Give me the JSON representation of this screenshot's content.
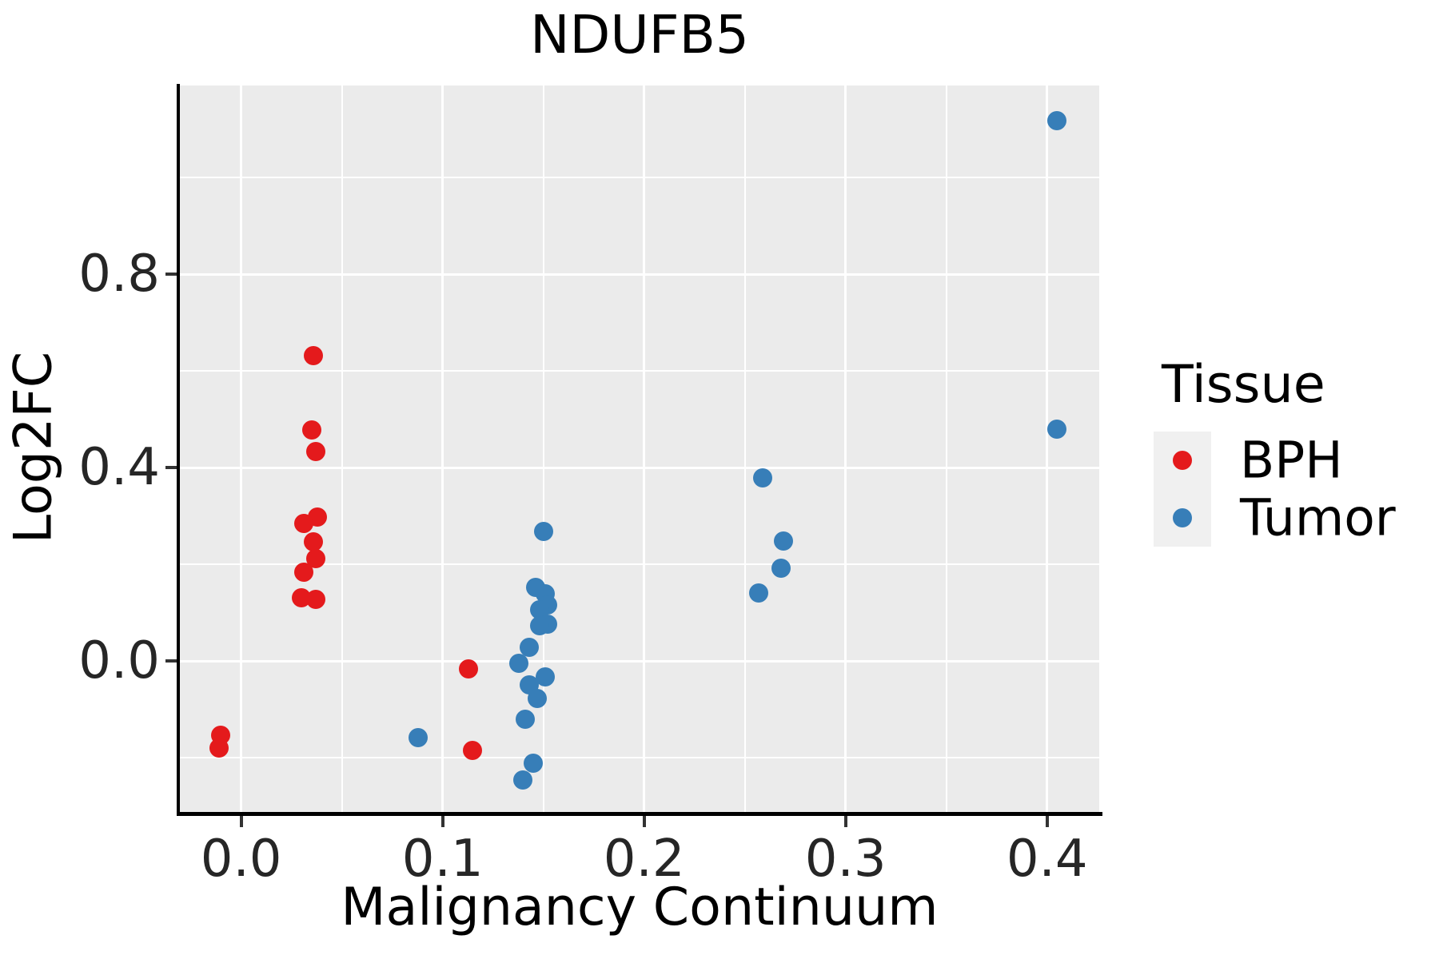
{
  "title": "NDUFB5",
  "axes": {
    "x": {
      "label": "Malignancy Continuum",
      "ticks": [
        {
          "value": 0.0,
          "label": "0.0"
        },
        {
          "value": 0.1,
          "label": "0.1"
        },
        {
          "value": 0.2,
          "label": "0.2"
        },
        {
          "value": 0.3,
          "label": "0.3"
        },
        {
          "value": 0.4,
          "label": "0.4"
        }
      ],
      "minor_ticks": [
        0.05,
        0.15,
        0.25,
        0.35
      ]
    },
    "y": {
      "label": "Log2FC",
      "ticks": [
        {
          "value": 0.0,
          "label": "0.0"
        },
        {
          "value": 0.4,
          "label": "0.4"
        },
        {
          "value": 0.8,
          "label": "0.8"
        }
      ],
      "minor_ticks": [
        -0.2,
        0.2,
        0.6,
        1.0
      ]
    }
  },
  "legend": {
    "title": "Tissue",
    "items": [
      {
        "label": "BPH",
        "color": "#E41A1C"
      },
      {
        "label": "Tumor",
        "color": "#377EB8"
      }
    ]
  },
  "colors": {
    "panel_background": "#EBEBEB",
    "gridline": "#FFFFFF",
    "axis_line": "#000000",
    "tick_text": "#262626",
    "legend_key_background": "#F0F0F0",
    "bph": "#E41A1C",
    "tumor": "#377EB8"
  },
  "chart_data": {
    "type": "scatter",
    "title": "NDUFB5",
    "xlabel": "Malignancy Continuum",
    "ylabel": "Log2FC",
    "xlim": [
      -0.0304,
      0.4259
    ],
    "ylim": [
      -0.3124,
      1.1901
    ],
    "grid": "major-minor",
    "legend_position": "right",
    "series": [
      {
        "name": "BPH",
        "color": "#E41A1C",
        "points": [
          [
            -0.01,
            -0.154
          ],
          [
            -0.011,
            -0.18
          ],
          [
            0.036,
            0.631
          ],
          [
            0.035,
            0.477
          ],
          [
            0.037,
            0.433
          ],
          [
            0.038,
            0.297
          ],
          [
            0.031,
            0.284
          ],
          [
            0.036,
            0.246
          ],
          [
            0.037,
            0.211
          ],
          [
            0.031,
            0.183
          ],
          [
            0.03,
            0.13
          ],
          [
            0.037,
            0.127
          ],
          [
            0.113,
            -0.016
          ],
          [
            0.115,
            -0.185
          ]
        ]
      },
      {
        "name": "Tumor",
        "color": "#377EB8",
        "points": [
          [
            0.088,
            -0.158
          ],
          [
            0.15,
            0.267
          ],
          [
            0.146,
            0.152
          ],
          [
            0.151,
            0.139
          ],
          [
            0.152,
            0.115
          ],
          [
            0.148,
            0.105
          ],
          [
            0.152,
            0.076
          ],
          [
            0.148,
            0.072
          ],
          [
            0.143,
            0.028
          ],
          [
            0.138,
            -0.005
          ],
          [
            0.151,
            -0.033
          ],
          [
            0.143,
            -0.049
          ],
          [
            0.147,
            -0.077
          ],
          [
            0.141,
            -0.121
          ],
          [
            0.145,
            -0.212
          ],
          [
            0.14,
            -0.247
          ],
          [
            0.259,
            0.379
          ],
          [
            0.269,
            0.248
          ],
          [
            0.268,
            0.192
          ],
          [
            0.257,
            0.141
          ],
          [
            0.405,
            1.117
          ],
          [
            0.405,
            0.479
          ]
        ]
      }
    ]
  }
}
